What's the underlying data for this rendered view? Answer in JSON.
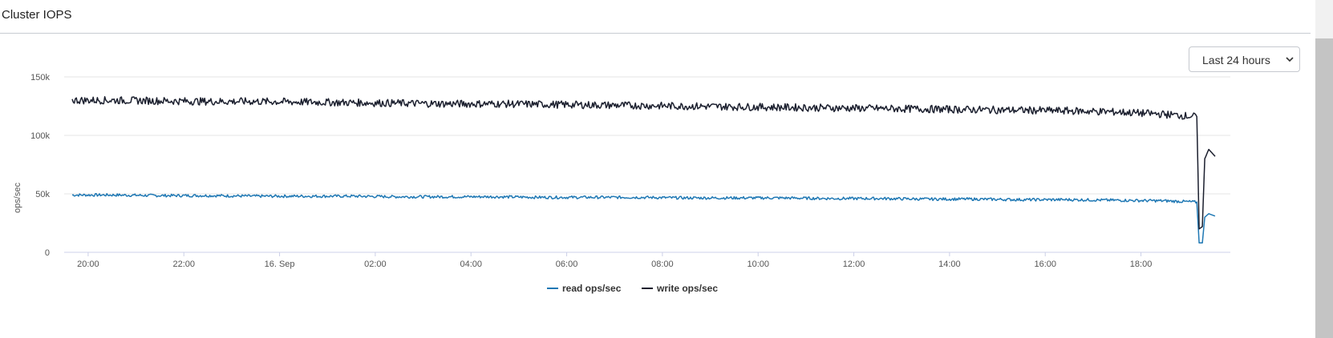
{
  "panel": {
    "title": "Cluster IOPS",
    "range_select": {
      "value": "Last 24 hours"
    }
  },
  "chart_data": {
    "type": "line",
    "title": "",
    "xlabel": "",
    "ylabel": "ops/sec",
    "x_ticks": [
      "20:00",
      "22:00",
      "16. Sep",
      "02:00",
      "04:00",
      "06:00",
      "08:00",
      "10:00",
      "12:00",
      "14:00",
      "16:00",
      "18:00"
    ],
    "y_ticks": [
      "0",
      "50k",
      "100k",
      "150k"
    ],
    "x_range": [
      "2023-09-15 19:40",
      "2023-09-16 19:40"
    ],
    "ylim": [
      0,
      150000
    ],
    "grid": "horizontal",
    "legend_position": "bottom-center",
    "series": [
      {
        "name": "read ops/sec",
        "color": "#1f78b4",
        "points": [
          [
            "15 19:40",
            49000
          ],
          [
            "15 20:30",
            49000
          ],
          [
            "15 21:30",
            48500
          ],
          [
            "15 22:30",
            48500
          ],
          [
            "15 23:30",
            48000
          ],
          [
            "16 00:30",
            48000
          ],
          [
            "16 01:30",
            48000
          ],
          [
            "16 02:30",
            47500
          ],
          [
            "16 03:30",
            47500
          ],
          [
            "16 04:30",
            47500
          ],
          [
            "16 05:30",
            47000
          ],
          [
            "16 06:30",
            47000
          ],
          [
            "16 07:30",
            47000
          ],
          [
            "16 08:30",
            46500
          ],
          [
            "16 09:30",
            46500
          ],
          [
            "16 10:30",
            46500
          ],
          [
            "16 11:30",
            46000
          ],
          [
            "16 12:30",
            46000
          ],
          [
            "16 13:30",
            45500
          ],
          [
            "16 14:30",
            45500
          ],
          [
            "16 15:30",
            45000
          ],
          [
            "16 16:30",
            45000
          ],
          [
            "16 17:30",
            44500
          ],
          [
            "16 18:30",
            44000
          ],
          [
            "16 19:10",
            43000
          ],
          [
            "16 19:13",
            8000
          ],
          [
            "16 19:17",
            8000
          ],
          [
            "16 19:20",
            30000
          ],
          [
            "16 19:25",
            33000
          ],
          [
            "16 19:33",
            31000
          ]
        ]
      },
      {
        "name": "write ops/sec",
        "color": "#1b1f2e",
        "points": [
          [
            "15 19:40",
            130000
          ],
          [
            "15 20:30",
            130000
          ],
          [
            "15 21:30",
            129500
          ],
          [
            "15 22:30",
            129000
          ],
          [
            "15 23:30",
            129000
          ],
          [
            "16 00:30",
            128500
          ],
          [
            "16 01:30",
            128000
          ],
          [
            "16 02:30",
            127500
          ],
          [
            "16 03:30",
            127000
          ],
          [
            "16 04:30",
            127000
          ],
          [
            "16 05:30",
            126500
          ],
          [
            "16 06:30",
            126000
          ],
          [
            "16 07:30",
            125500
          ],
          [
            "16 08:30",
            125000
          ],
          [
            "16 09:30",
            124500
          ],
          [
            "16 10:30",
            124000
          ],
          [
            "16 11:30",
            123500
          ],
          [
            "16 12:30",
            123000
          ],
          [
            "16 13:30",
            122500
          ],
          [
            "16 14:30",
            122000
          ],
          [
            "16 15:30",
            121500
          ],
          [
            "16 16:30",
            121000
          ],
          [
            "16 17:30",
            120000
          ],
          [
            "16 18:30",
            118000
          ],
          [
            "16 19:10",
            116000
          ],
          [
            "16 19:13",
            20000
          ],
          [
            "16 19:17",
            22000
          ],
          [
            "16 19:20",
            80000
          ],
          [
            "16 19:25",
            88000
          ],
          [
            "16 19:33",
            82000
          ]
        ]
      }
    ]
  }
}
